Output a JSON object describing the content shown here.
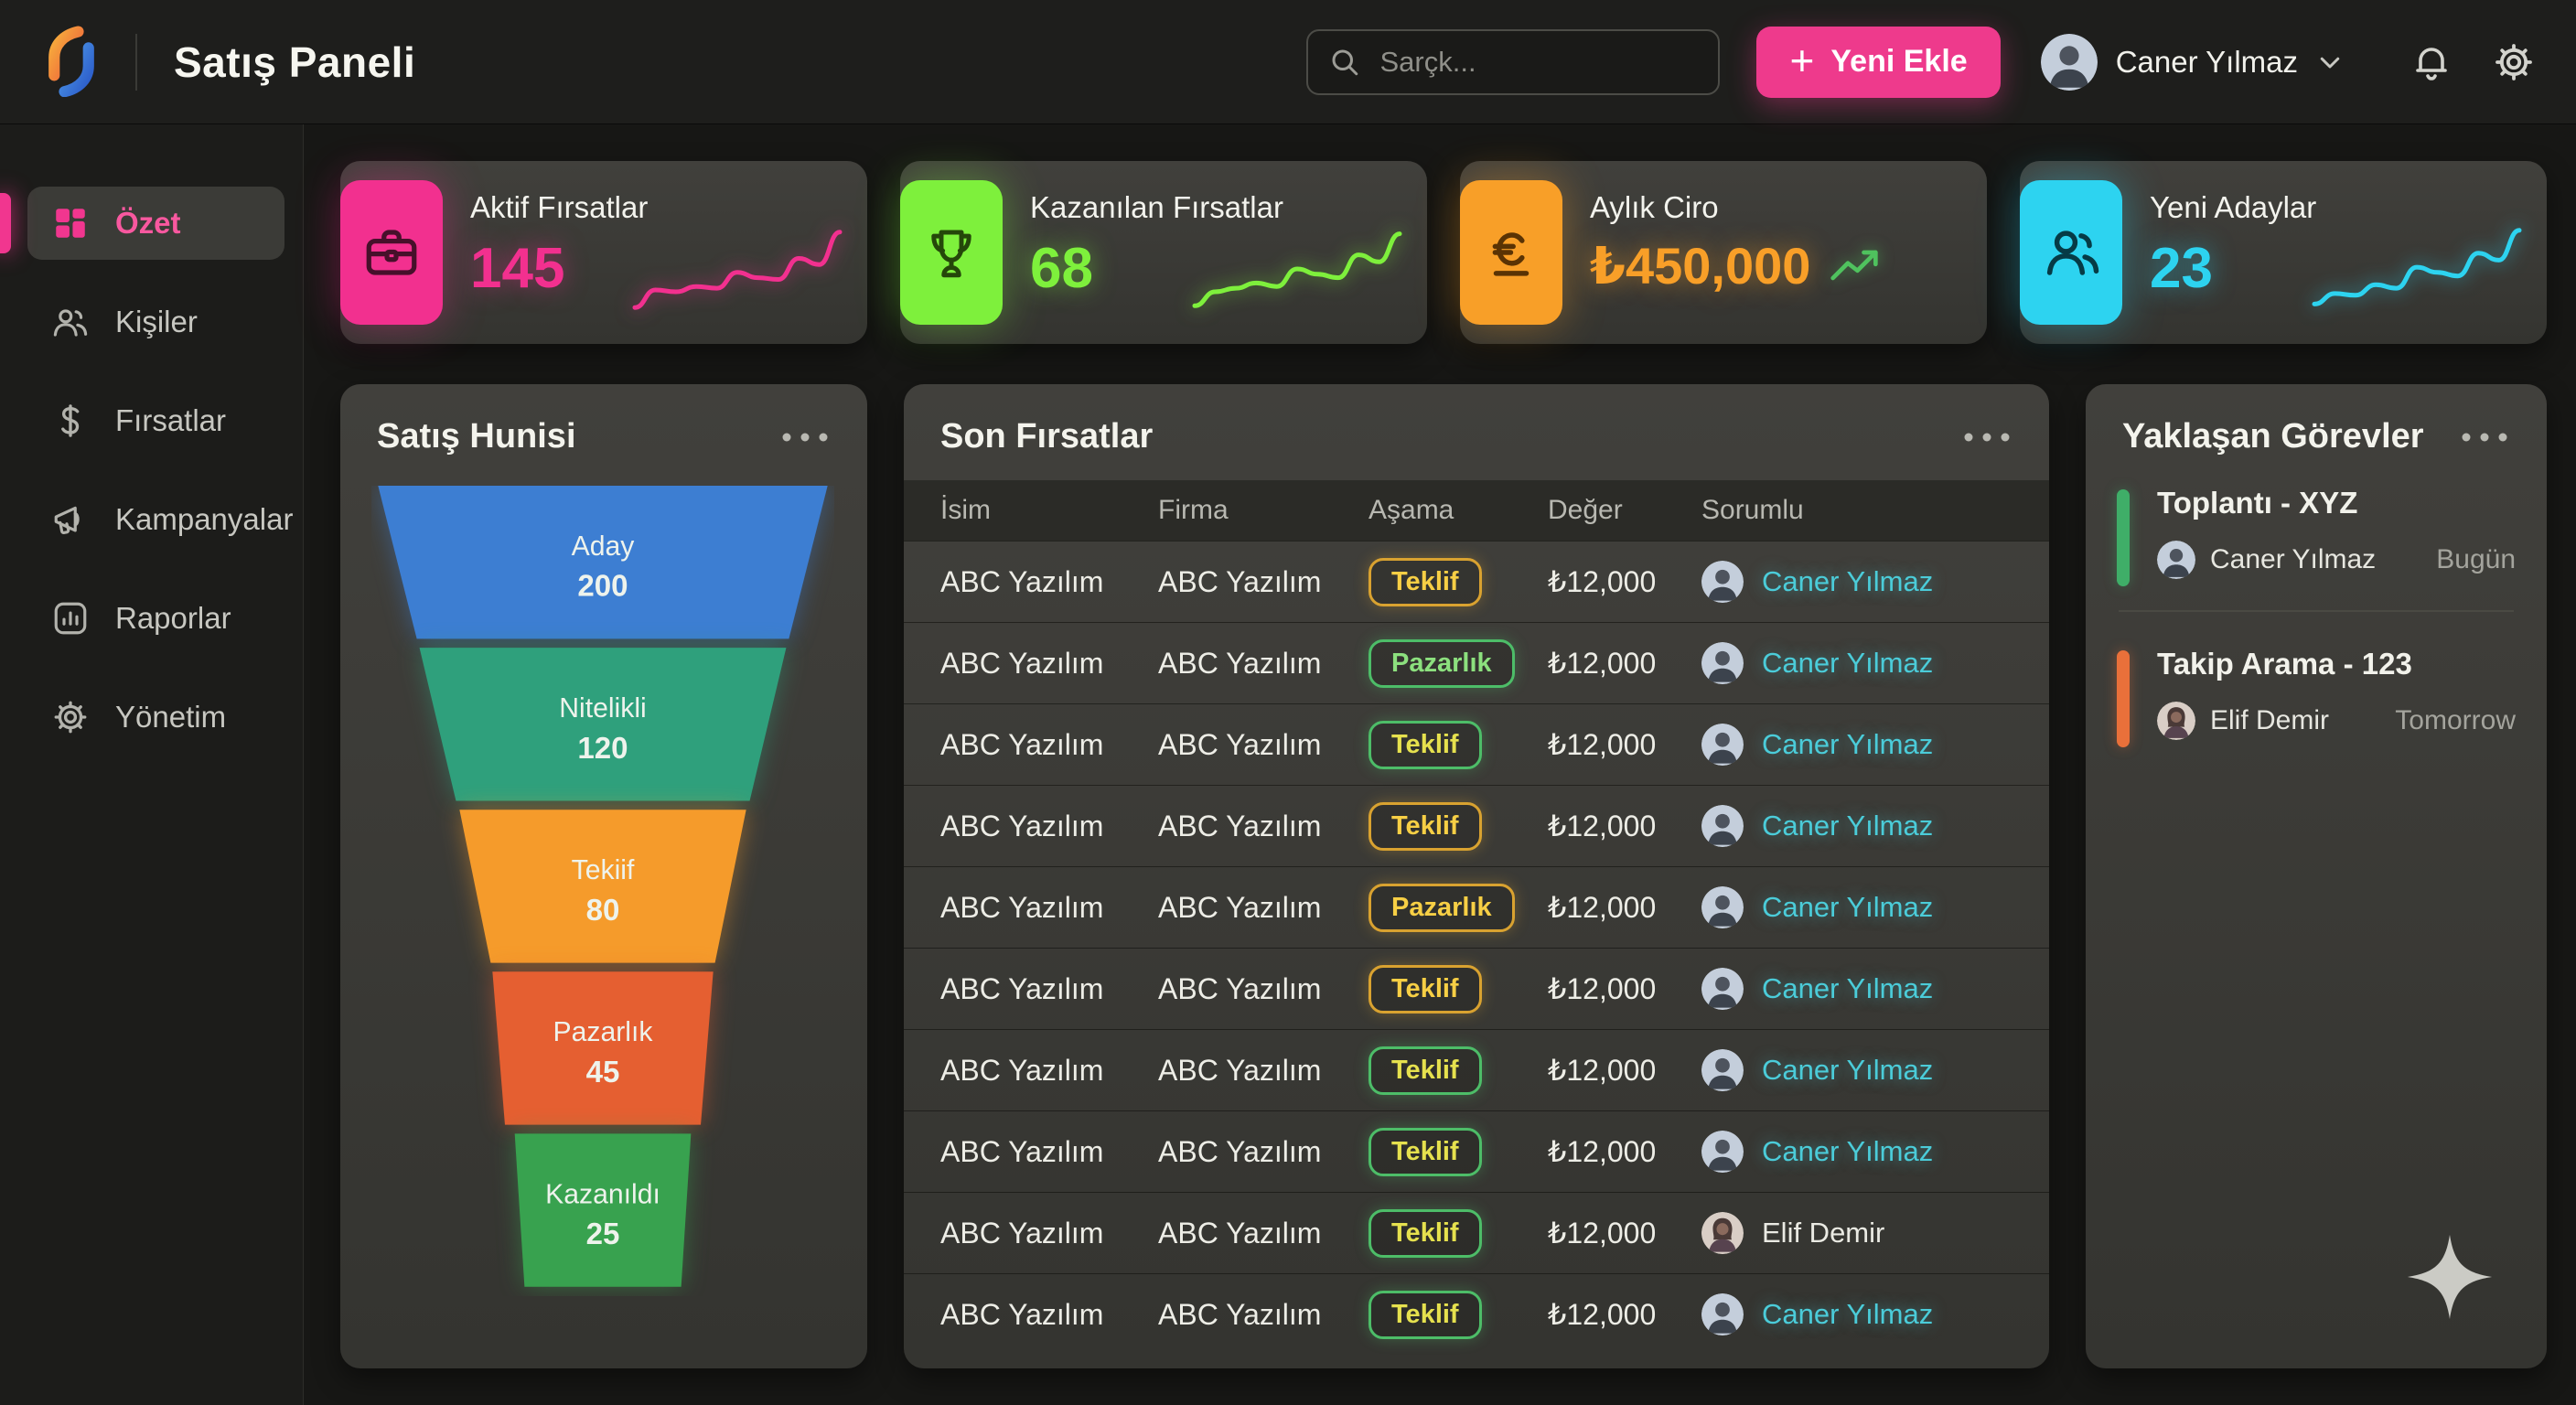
{
  "app": {
    "title": "Satış Paneli"
  },
  "topbar": {
    "search_placeholder": "Sarçk...",
    "add_button_label": "Yeni Ekle",
    "user_name": "Caner Yılmaz"
  },
  "sidebar": {
    "items": [
      {
        "label": "Özet",
        "icon": "grid-icon",
        "active": true
      },
      {
        "label": "Kişiler",
        "icon": "people-icon",
        "active": false
      },
      {
        "label": "Fırsatlar",
        "icon": "dollar-icon",
        "active": false
      },
      {
        "label": "Kampanyalar",
        "icon": "megaphone-icon",
        "active": false
      },
      {
        "label": "Raporlar",
        "icon": "bar-chart-icon",
        "active": false
      },
      {
        "label": "Yönetim",
        "icon": "gear-icon",
        "active": false
      }
    ]
  },
  "kpis": [
    {
      "label": "Aktif Fırsatlar",
      "value": "145",
      "icon": "briefcase-icon",
      "color": "#f2308f",
      "icon_ink": "#47102b",
      "trend": "spark",
      "spark": [
        6,
        26,
        24,
        30,
        28,
        46,
        40,
        38,
        62,
        55,
        92
      ]
    },
    {
      "label": "Kazanılan Fırsatlar",
      "value": "68",
      "icon": "trophy-icon",
      "color": "#7ef03c",
      "icon_ink": "#25470a",
      "trend": "spark",
      "spark": [
        8,
        24,
        28,
        34,
        30,
        50,
        44,
        40,
        66,
        58,
        90
      ]
    },
    {
      "label": "Aylık Ciro",
      "value": "₺450,000",
      "icon": "euro-icon",
      "color": "#f89f28",
      "icon_ink": "#5a3304",
      "trend": "arrow",
      "arrow_color": "#4fc25e"
    },
    {
      "label": "Yeni Adaylar",
      "value": "23",
      "icon": "users-icon",
      "color": "#2dd3f0",
      "icon_ink": "#063b46",
      "trend": "spark",
      "spark": [
        10,
        22,
        20,
        32,
        28,
        52,
        46,
        42,
        68,
        60,
        94
      ]
    }
  ],
  "funnel": {
    "title": "Satış Hunisi",
    "chart_data": {
      "type": "funnel",
      "stages": [
        {
          "label": "Aday",
          "value": 200,
          "color": "#3d7ed2"
        },
        {
          "label": "Nitelikli",
          "value": 120,
          "color": "#2fa07c"
        },
        {
          "label": "Tekiif",
          "value": 80,
          "color": "#f59b2b"
        },
        {
          "label": "Pazarlık",
          "value": 45,
          "color": "#e55f31"
        },
        {
          "label": "Kazanıldı",
          "value": 25,
          "color": "#38a24f"
        }
      ]
    }
  },
  "table": {
    "title": "Son Fırsatlar",
    "columns": [
      "İsim",
      "Firma",
      "Aşama",
      "Değer",
      "Sorumlu"
    ],
    "stage_styles": {
      "gold": {
        "border": "#d9a230",
        "text": "#f7cf45"
      },
      "green": {
        "border": "#4dbd68",
        "text": "#8ce07e"
      },
      "green_gold": {
        "border": "#4dbd68",
        "text": "#e6e14e"
      }
    },
    "rows": [
      {
        "isim": "ABC Yazılım",
        "firma": "ABC Yazılım",
        "stage": "Teklif",
        "variant": "gold",
        "value": "₺12,000",
        "owner": "Caner Yılmaz",
        "owner_link": true,
        "owner_gender": "male"
      },
      {
        "isim": "ABC Yazılım",
        "firma": "ABC Yazılım",
        "stage": "Pazarlık",
        "variant": "green",
        "value": "₺12,000",
        "owner": "Caner Yılmaz",
        "owner_link": true,
        "owner_gender": "male"
      },
      {
        "isim": "ABC Yazılım",
        "firma": "ABC Yazılım",
        "stage": "Teklif",
        "variant": "green_gold",
        "value": "₺12,000",
        "owner": "Caner Yılmaz",
        "owner_link": true,
        "owner_gender": "male"
      },
      {
        "isim": "ABC Yazılım",
        "firma": "ABC Yazılım",
        "stage": "Teklif",
        "variant": "gold",
        "value": "₺12,000",
        "owner": "Caner Yılmaz",
        "owner_link": true,
        "owner_gender": "male"
      },
      {
        "isim": "ABC Yazılım",
        "firma": "ABC Yazılım",
        "stage": "Pazarlık",
        "variant": "gold",
        "value": "₺12,000",
        "owner": "Caner Yılmaz",
        "owner_link": true,
        "owner_gender": "male"
      },
      {
        "isim": "ABC Yazılım",
        "firma": "ABC Yazılım",
        "stage": "Teklif",
        "variant": "gold",
        "value": "₺12,000",
        "owner": "Caner Yılmaz",
        "owner_link": true,
        "owner_gender": "male"
      },
      {
        "isim": "ABC Yazılım",
        "firma": "ABC Yazılım",
        "stage": "Teklif",
        "variant": "green_gold",
        "value": "₺12,000",
        "owner": "Caner Yılmaz",
        "owner_link": true,
        "owner_gender": "male"
      },
      {
        "isim": "ABC Yazılım",
        "firma": "ABC Yazılım",
        "stage": "Teklif",
        "variant": "green_gold",
        "value": "₺12,000",
        "owner": "Caner Yılmaz",
        "owner_link": true,
        "owner_gender": "male"
      },
      {
        "isim": "ABC Yazılım",
        "firma": "ABC Yazılım",
        "stage": "Teklif",
        "variant": "green_gold",
        "value": "₺12,000",
        "owner": "Elif Demir",
        "owner_link": false,
        "owner_gender": "female"
      },
      {
        "isim": "ABC Yazılım",
        "firma": "ABC Yazılım",
        "stage": "Teklif",
        "variant": "green_gold",
        "value": "₺12,000",
        "owner": "Caner Yılmaz",
        "owner_link": true,
        "owner_gender": "male"
      }
    ]
  },
  "tasks": {
    "title": "Yaklaşan Görevler",
    "items": [
      {
        "title": "Toplantı - XYZ",
        "owner": "Caner Yılmaz",
        "due": "Bugün",
        "accent": "#3fae68",
        "owner_gender": "male"
      },
      {
        "title": "Takip Arama - 123",
        "owner": "Elif Demir",
        "due": "Tomorrow",
        "accent": "#e9703a",
        "owner_gender": "female"
      }
    ]
  }
}
